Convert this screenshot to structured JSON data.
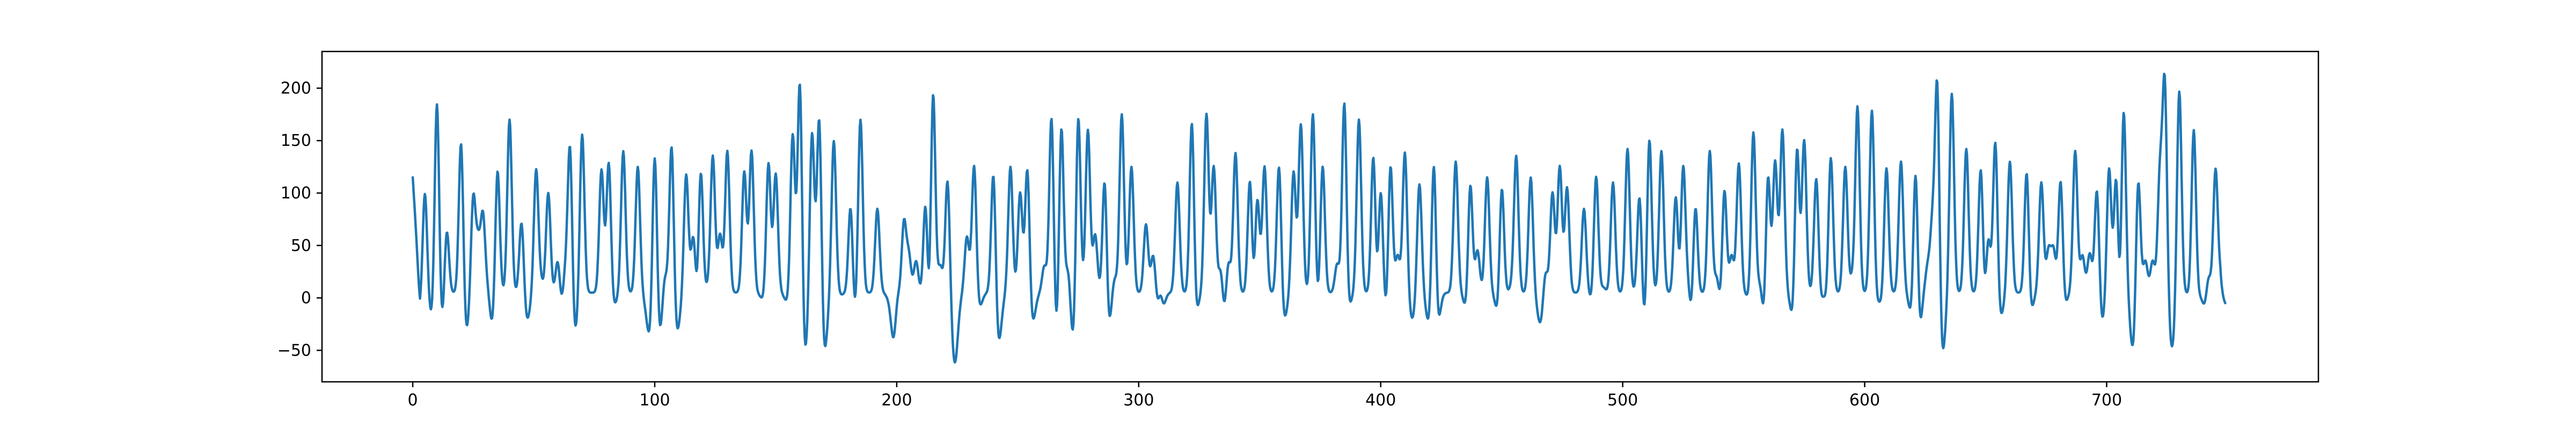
{
  "chart_data": {
    "type": "line",
    "title": "",
    "xlabel": "",
    "ylabel": "",
    "xlim": [
      -37.5,
      787.5
    ],
    "ylim": [
      -80,
      235
    ],
    "grid": false,
    "legend": "none",
    "x_ticks": [
      {
        "value": 0,
        "label": "0"
      },
      {
        "value": 100,
        "label": "100"
      },
      {
        "value": 200,
        "label": "200"
      },
      {
        "value": 300,
        "label": "300"
      },
      {
        "value": 400,
        "label": "400"
      },
      {
        "value": 500,
        "label": "500"
      },
      {
        "value": 600,
        "label": "600"
      },
      {
        "value": 700,
        "label": "700"
      }
    ],
    "y_ticks": [
      {
        "value": -50,
        "label": "−50"
      },
      {
        "value": 0,
        "label": "0"
      },
      {
        "value": 50,
        "label": "50"
      },
      {
        "value": 100,
        "label": "100"
      },
      {
        "value": 150,
        "label": "150"
      },
      {
        "value": 200,
        "label": "200"
      }
    ],
    "series": [
      {
        "color": "#1f77b4",
        "x_start": 0,
        "x_end": 749,
        "start_value": 115,
        "end_value": -5,
        "baseline": 5,
        "spike_width": 1.3,
        "dip_width": 1.8,
        "spikes": [
          [
            5,
            105
          ],
          [
            10,
            202
          ],
          [
            14,
            72
          ],
          [
            17,
            5
          ],
          [
            20,
            158
          ],
          [
            25,
            97
          ],
          [
            27,
            50
          ],
          [
            29,
            78
          ],
          [
            31,
            15
          ],
          [
            35,
            130
          ],
          [
            37,
            5
          ],
          [
            40,
            170
          ],
          [
            45,
            78
          ],
          [
            48,
            2
          ],
          [
            51,
            122
          ],
          [
            53,
            15
          ],
          [
            56,
            100
          ],
          [
            60,
            48
          ],
          [
            63,
            28
          ],
          [
            65,
            155
          ],
          [
            68,
            10
          ],
          [
            70,
            158
          ],
          [
            75,
            5
          ],
          [
            78,
            122
          ],
          [
            81,
            132
          ],
          [
            84,
            5
          ],
          [
            87,
            140
          ],
          [
            90,
            5
          ],
          [
            93,
            125
          ],
          [
            96,
            2
          ],
          [
            100,
            158
          ],
          [
            104,
            28
          ],
          [
            107,
            155
          ],
          [
            111,
            2
          ],
          [
            113,
            118
          ],
          [
            116,
            65
          ],
          [
            119,
            140
          ],
          [
            122,
            10
          ],
          [
            124,
            135
          ],
          [
            127,
            60
          ],
          [
            130,
            140
          ],
          [
            133,
            5
          ],
          [
            137,
            120
          ],
          [
            140,
            140
          ],
          [
            143,
            5
          ],
          [
            147,
            130
          ],
          [
            150,
            118
          ],
          [
            153,
            5
          ],
          [
            157,
            158
          ],
          [
            160,
            222
          ],
          [
            163,
            10
          ],
          [
            165,
            160
          ],
          [
            168,
            186
          ],
          [
            171,
            5
          ],
          [
            174,
            150
          ],
          [
            177,
            3
          ],
          [
            181,
            110
          ],
          [
            185,
            172
          ],
          [
            188,
            5
          ],
          [
            192,
            85
          ],
          [
            196,
            3
          ],
          [
            200,
            30
          ],
          [
            203,
            72
          ],
          [
            205,
            40
          ],
          [
            208,
            35
          ],
          [
            212,
            128
          ],
          [
            215,
            210
          ],
          [
            218,
            30
          ],
          [
            221,
            115
          ],
          [
            226,
            5
          ],
          [
            229,
            58
          ],
          [
            232,
            130
          ],
          [
            236,
            5
          ],
          [
            240,
            130
          ],
          [
            244,
            5
          ],
          [
            247,
            125
          ],
          [
            251,
            100
          ],
          [
            254,
            130
          ],
          [
            258,
            5
          ],
          [
            261,
            30
          ],
          [
            264,
            185
          ],
          [
            268,
            175
          ],
          [
            271,
            35
          ],
          [
            275,
            185
          ],
          [
            279,
            160
          ],
          [
            282,
            60
          ],
          [
            286,
            145
          ],
          [
            290,
            20
          ],
          [
            293,
            175
          ],
          [
            297,
            125
          ],
          [
            300,
            5
          ],
          [
            303,
            70
          ],
          [
            306,
            42
          ],
          [
            309,
            42
          ],
          [
            312,
            5
          ],
          [
            316,
            110
          ],
          [
            319,
            5
          ],
          [
            322,
            190
          ],
          [
            326,
            5
          ],
          [
            328,
            175
          ],
          [
            331,
            125
          ],
          [
            334,
            45
          ],
          [
            337,
            40
          ],
          [
            340,
            138
          ],
          [
            343,
            5
          ],
          [
            346,
            130
          ],
          [
            349,
            100
          ],
          [
            352,
            125
          ],
          [
            355,
            5
          ],
          [
            358,
            132
          ],
          [
            361,
            5
          ],
          [
            364,
            120
          ],
          [
            367,
            165
          ],
          [
            370,
            5
          ],
          [
            372,
            180
          ],
          [
            376,
            130
          ],
          [
            379,
            5
          ],
          [
            382,
            32
          ],
          [
            385,
            205
          ],
          [
            388,
            5
          ],
          [
            391,
            170
          ],
          [
            394,
            5
          ],
          [
            397,
            155
          ],
          [
            400,
            110
          ],
          [
            404,
            150
          ],
          [
            407,
            40
          ],
          [
            410,
            140
          ],
          [
            414,
            5
          ],
          [
            416,
            110
          ],
          [
            419,
            5
          ],
          [
            422,
            168
          ],
          [
            425,
            5
          ],
          [
            428,
            5
          ],
          [
            431,
            130
          ],
          [
            434,
            5
          ],
          [
            437,
            125
          ],
          [
            440,
            45
          ],
          [
            444,
            115
          ],
          [
            447,
            5
          ],
          [
            450,
            125
          ],
          [
            454,
            10
          ],
          [
            456,
            135
          ],
          [
            459,
            5
          ],
          [
            462,
            115
          ],
          [
            465,
            5
          ],
          [
            468,
            30
          ],
          [
            471,
            100
          ],
          [
            474,
            125
          ],
          [
            477,
            105
          ],
          [
            481,
            5
          ],
          [
            484,
            85
          ],
          [
            487,
            5
          ],
          [
            489,
            125
          ],
          [
            492,
            10
          ],
          [
            496,
            110
          ],
          [
            500,
            5
          ],
          [
            502,
            142
          ],
          [
            505,
            5
          ],
          [
            507,
            105
          ],
          [
            511,
            160
          ],
          [
            514,
            5
          ],
          [
            516,
            140
          ],
          [
            519,
            5
          ],
          [
            522,
            110
          ],
          [
            525,
            130
          ],
          [
            527,
            20
          ],
          [
            530,
            110
          ],
          [
            533,
            5
          ],
          [
            536,
            140
          ],
          [
            539,
            25
          ],
          [
            542,
            120
          ],
          [
            545,
            40
          ],
          [
            548,
            128
          ],
          [
            551,
            5
          ],
          [
            554,
            165
          ],
          [
            557,
            20
          ],
          [
            560,
            145
          ],
          [
            563,
            130
          ],
          [
            566,
            160
          ],
          [
            569,
            5
          ],
          [
            572,
            170
          ],
          [
            575,
            150
          ],
          [
            578,
            5
          ],
          [
            580,
            115
          ],
          [
            583,
            30
          ],
          [
            586,
            135
          ],
          [
            589,
            5
          ],
          [
            592,
            125
          ],
          [
            595,
            30
          ],
          [
            597,
            195
          ],
          [
            600,
            5
          ],
          [
            603,
            180
          ],
          [
            606,
            20
          ],
          [
            609,
            125
          ],
          [
            612,
            5
          ],
          [
            615,
            130
          ],
          [
            618,
            5
          ],
          [
            621,
            155
          ],
          [
            624,
            25
          ],
          [
            626,
            30
          ],
          [
            628,
            68
          ],
          [
            630,
            218
          ],
          [
            633,
            5
          ],
          [
            636,
            195
          ],
          [
            639,
            5
          ],
          [
            642,
            142
          ],
          [
            645,
            5
          ],
          [
            648,
            130
          ],
          [
            651,
            75
          ],
          [
            654,
            155
          ],
          [
            657,
            5
          ],
          [
            660,
            130
          ],
          [
            663,
            5
          ],
          [
            667,
            140
          ],
          [
            670,
            5
          ],
          [
            673,
            110
          ],
          [
            676,
            45
          ],
          [
            678,
            45
          ],
          [
            681,
            125
          ],
          [
            684,
            5
          ],
          [
            687,
            140
          ],
          [
            690,
            40
          ],
          [
            693,
            42
          ],
          [
            696,
            110
          ],
          [
            699,
            5
          ],
          [
            701,
            125
          ],
          [
            704,
            150
          ],
          [
            707,
            192
          ],
          [
            710,
            5
          ],
          [
            713,
            125
          ],
          [
            716,
            35
          ],
          [
            719,
            35
          ],
          [
            722,
            115
          ],
          [
            724,
            205
          ],
          [
            727,
            5
          ],
          [
            730,
            200
          ],
          [
            734,
            5
          ],
          [
            736,
            180
          ],
          [
            739,
            5
          ],
          [
            742,
            30
          ],
          [
            745,
            122
          ],
          [
            747,
            18
          ]
        ],
        "dips": [
          [
            3,
            -10
          ],
          [
            8,
            -20
          ],
          [
            12,
            -30
          ],
          [
            22,
            -35
          ],
          [
            33,
            -28
          ],
          [
            47,
            -20
          ],
          [
            61,
            -15
          ],
          [
            67,
            -40
          ],
          [
            83,
            -8
          ],
          [
            98,
            -38
          ],
          [
            102,
            -38
          ],
          [
            109,
            -35
          ],
          [
            118,
            -25
          ],
          [
            145,
            -2
          ],
          [
            155,
            -5
          ],
          [
            162,
            -62
          ],
          [
            170,
            -55
          ],
          [
            182,
            -30
          ],
          [
            199,
            -48
          ],
          [
            213,
            -55
          ],
          [
            224,
            -62
          ],
          [
            234,
            -10
          ],
          [
            242,
            -45
          ],
          [
            256,
            -25
          ],
          [
            266,
            -45
          ],
          [
            273,
            -45
          ],
          [
            287,
            -45
          ],
          [
            309,
            -35
          ],
          [
            323,
            -28
          ],
          [
            335,
            -25
          ],
          [
            347,
            -22
          ],
          [
            360,
            -22
          ],
          [
            374,
            -12
          ],
          [
            386,
            -22
          ],
          [
            398,
            -25
          ],
          [
            403,
            -30
          ],
          [
            413,
            -20
          ],
          [
            420,
            -25
          ],
          [
            423,
            -42
          ],
          [
            436,
            -20
          ],
          [
            449,
            -25
          ],
          [
            466,
            -25
          ],
          [
            488,
            -8
          ],
          [
            509,
            -30
          ],
          [
            523,
            -15
          ],
          [
            529,
            -30
          ],
          [
            541,
            -20
          ],
          [
            553,
            -5
          ],
          [
            559,
            -38
          ],
          [
            571,
            -35
          ],
          [
            583,
            -25
          ],
          [
            596,
            -15
          ],
          [
            606,
            -20
          ],
          [
            620,
            -30
          ],
          [
            623,
            -40
          ],
          [
            632,
            -58
          ],
          [
            650,
            -25
          ],
          [
            656,
            -20
          ],
          [
            668,
            -25
          ],
          [
            682,
            -15
          ],
          [
            698,
            -25
          ],
          [
            705,
            -50
          ],
          [
            711,
            -52
          ],
          [
            727,
            -48
          ],
          [
            736,
            -15
          ],
          [
            741,
            -12
          ]
        ]
      }
    ]
  }
}
